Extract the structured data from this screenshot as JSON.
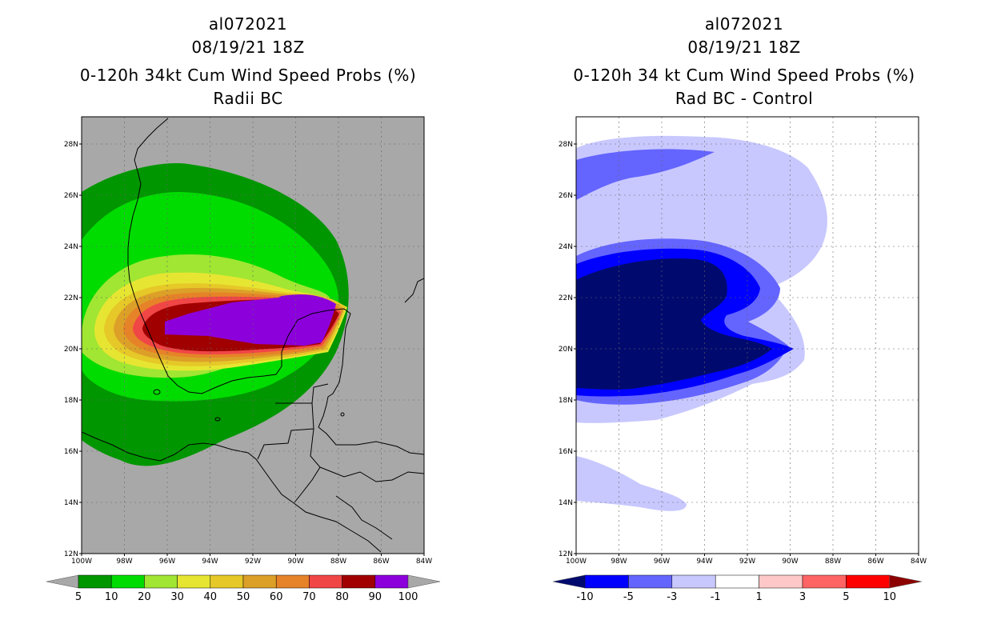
{
  "left_panel": {
    "storm_id": "al072021",
    "datetime": "08/19/21 18Z",
    "title": "0-120h 34kt Cum Wind Speed Probs (%)",
    "subtitle": "Radii BC",
    "colorbar_labels": [
      "5",
      "10",
      "20",
      "30",
      "40",
      "50",
      "60",
      "70",
      "80",
      "90",
      "100"
    ],
    "colors": [
      "#009600",
      "#00dc00",
      "#a0e632",
      "#e6e632",
      "#e6c828",
      "#dca028",
      "#e68228",
      "#f04646",
      "#a00000",
      "#8c00dc"
    ]
  },
  "right_panel": {
    "storm_id": "al072021",
    "datetime": "08/19/21 18Z",
    "title": "0-120h 34 kt Cum Wind Speed Probs (%)",
    "subtitle": "Rad BC - Control",
    "colorbar_labels": [
      "-10",
      "-5",
      "-3",
      "-1",
      "1",
      "3",
      "5",
      "10"
    ],
    "colors": [
      "#000a6e",
      "#0000ff",
      "#6464ff",
      "#c8c8ff",
      "#ffffff",
      "#ffc8c8",
      "#ff6464",
      "#ff0000",
      "#8c0000"
    ]
  },
  "map": {
    "lat_labels": [
      "28N",
      "26N",
      "24N",
      "22N",
      "20N",
      "18N",
      "16N",
      "14N",
      "12N"
    ],
    "lon_labels": [
      "100W",
      "98W",
      "96W",
      "94W",
      "92W",
      "90W",
      "88W",
      "86W",
      "84W"
    ]
  }
}
